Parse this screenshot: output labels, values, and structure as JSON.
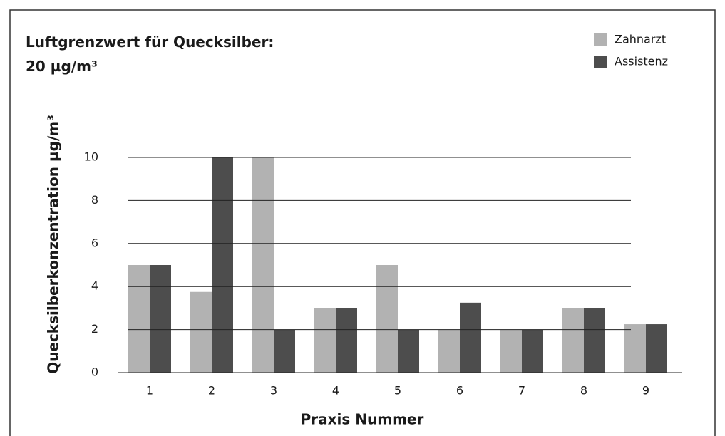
{
  "chart_data": {
    "type": "bar",
    "title": "Luftgrenzwert für Quecksilber:",
    "subtitle": "20 µg/m³",
    "x_label": "Praxis Nummer",
    "y_label": "Quecksilberkonzentration µg/m³",
    "categories": [
      "1",
      "2",
      "3",
      "4",
      "5",
      "6",
      "7",
      "8",
      "9"
    ],
    "series": [
      {
        "name": "Zahnarzt",
        "color": "#b2b2b2",
        "values": [
          5,
          3.75,
          10,
          3,
          5,
          2,
          2,
          3,
          2.25
        ]
      },
      {
        "name": "Assistenz",
        "color": "#4d4d4d",
        "values": [
          5,
          10,
          2,
          3,
          2,
          3.25,
          2,
          3,
          2.25
        ]
      }
    ],
    "ylim": [
      0,
      10
    ],
    "yticks": [
      0,
      2,
      4,
      6,
      8,
      10
    ],
    "grid": true,
    "legend": "top-right"
  }
}
